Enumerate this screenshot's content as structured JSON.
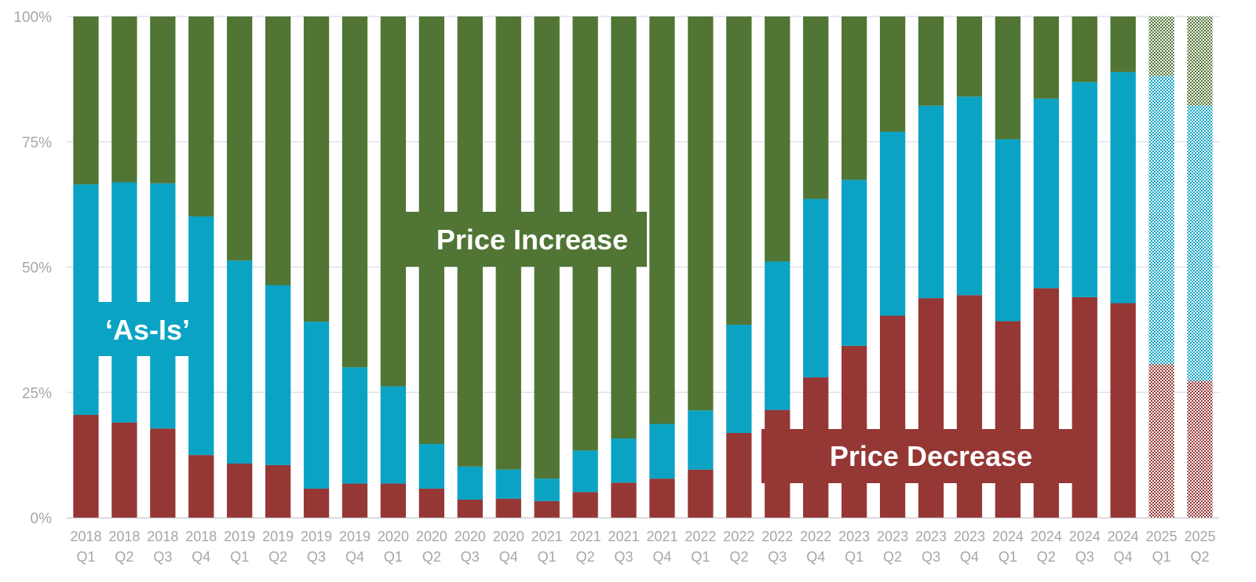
{
  "chart_data": {
    "type": "bar",
    "stacked": true,
    "percent_stacked": true,
    "categories": [
      [
        "2018",
        "Q1"
      ],
      [
        "2018",
        "Q2"
      ],
      [
        "2018",
        "Q3"
      ],
      [
        "2018",
        "Q4"
      ],
      [
        "2019",
        "Q1"
      ],
      [
        "2019",
        "Q2"
      ],
      [
        "2019",
        "Q3"
      ],
      [
        "2019",
        "Q4"
      ],
      [
        "2020",
        "Q1"
      ],
      [
        "2020",
        "Q2"
      ],
      [
        "2020",
        "Q3"
      ],
      [
        "2020",
        "Q4"
      ],
      [
        "2021",
        "Q1"
      ],
      [
        "2021",
        "Q2"
      ],
      [
        "2021",
        "Q3"
      ],
      [
        "2021",
        "Q4"
      ],
      [
        "2022",
        "Q1"
      ],
      [
        "2022",
        "Q2"
      ],
      [
        "2022",
        "Q3"
      ],
      [
        "2022",
        "Q4"
      ],
      [
        "2023",
        "Q1"
      ],
      [
        "2023",
        "Q2"
      ],
      [
        "2023",
        "Q3"
      ],
      [
        "2023",
        "Q4"
      ],
      [
        "2024",
        "Q1"
      ],
      [
        "2024",
        "Q2"
      ],
      [
        "2024",
        "Q3"
      ],
      [
        "2024",
        "Q4"
      ],
      [
        "2025",
        "Q1"
      ],
      [
        "2025",
        "Q2"
      ]
    ],
    "series": [
      {
        "name": "Price Decrease",
        "color": "#953735",
        "values": [
          20.5,
          19,
          17.8,
          12.5,
          10.8,
          10.5,
          5.8,
          6.8,
          6.8,
          5.8,
          3.6,
          3.8,
          3.3,
          5.1,
          7.0,
          7.8,
          9.6,
          16.9,
          21.5,
          28.0,
          34.3,
          40.3,
          43.8,
          44.4,
          39.2,
          45.8,
          44.0,
          42.8,
          30.6,
          27.3
        ]
      },
      {
        "name": "'As-Is'",
        "color": "#0aa3c4",
        "values": [
          46.0,
          47.9,
          48.9,
          47.6,
          40.5,
          35.9,
          33.3,
          23.2,
          19.4,
          8.9,
          6.6,
          5.8,
          4.5,
          8.3,
          8.8,
          10.9,
          11.8,
          21.6,
          29.6,
          35.6,
          33.1,
          36.7,
          38.4,
          39.6,
          36.3,
          37.8,
          42.9,
          46.1,
          57.5,
          54.9
        ]
      },
      {
        "name": "Price Increase",
        "color": "#507534",
        "values": [
          33.5,
          33.1,
          33.3,
          39.9,
          48.7,
          53.6,
          60.9,
          70.0,
          73.8,
          85.3,
          89.8,
          90.4,
          92.2,
          86.6,
          84.2,
          81.3,
          78.6,
          61.5,
          48.9,
          36.4,
          32.6,
          23.0,
          17.8,
          16.0,
          24.5,
          16.4,
          13.1,
          11.1,
          11.9,
          17.8
        ]
      }
    ],
    "forecast_categories": [
      28,
      29
    ],
    "yticks": [
      "0%",
      "25%",
      "50%",
      "75%",
      "100%"
    ],
    "ylim": [
      0,
      100
    ],
    "grid": true,
    "annotations": {
      "as_is": "‘As-Is’",
      "price_increase": "Price Increase",
      "price_decrease": "Price Decrease"
    }
  }
}
